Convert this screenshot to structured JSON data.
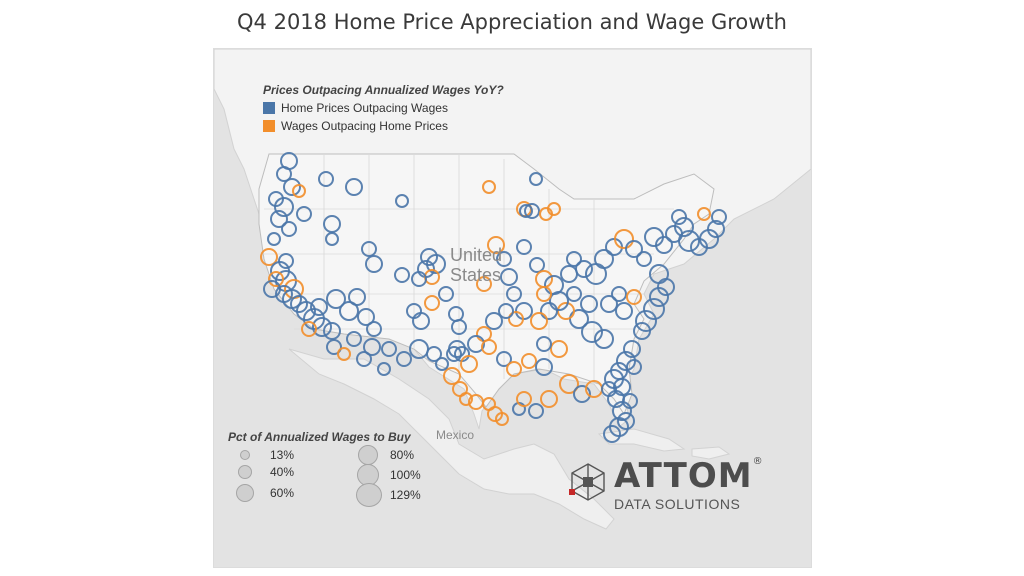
{
  "title": "Q4 2018 Home Price Appreciation and Wage Growth",
  "colors": {
    "home_prices": "#4a76a8",
    "wages": "#f28e2b",
    "land": "#f3f3f3",
    "water": "#e3e3e3",
    "border": "#c6c6c6"
  },
  "color_legend": {
    "title": "Prices Outpacing Annualized Wages YoY?",
    "items": [
      {
        "label": "Home Prices Outpacing Wages",
        "color": "#4a76a8"
      },
      {
        "label": "Wages Outpacing Home Prices",
        "color": "#f28e2b"
      }
    ]
  },
  "size_legend": {
    "title": "Pct of Annualized Wages to Buy",
    "items": [
      {
        "label": "13%",
        "value": 13
      },
      {
        "label": "40%",
        "value": 40
      },
      {
        "label": "60%",
        "value": 60
      },
      {
        "label": "80%",
        "value": 80
      },
      {
        "label": "100%",
        "value": 100
      },
      {
        "label": "129%",
        "value": 129
      }
    ]
  },
  "map_labels": {
    "country_line1": "United",
    "country_line2": "States",
    "mexico": "Mexico"
  },
  "logo": {
    "wordmark": "ATTOM",
    "registered": "®",
    "subtitle": "DATA SOLUTIONS"
  }
}
